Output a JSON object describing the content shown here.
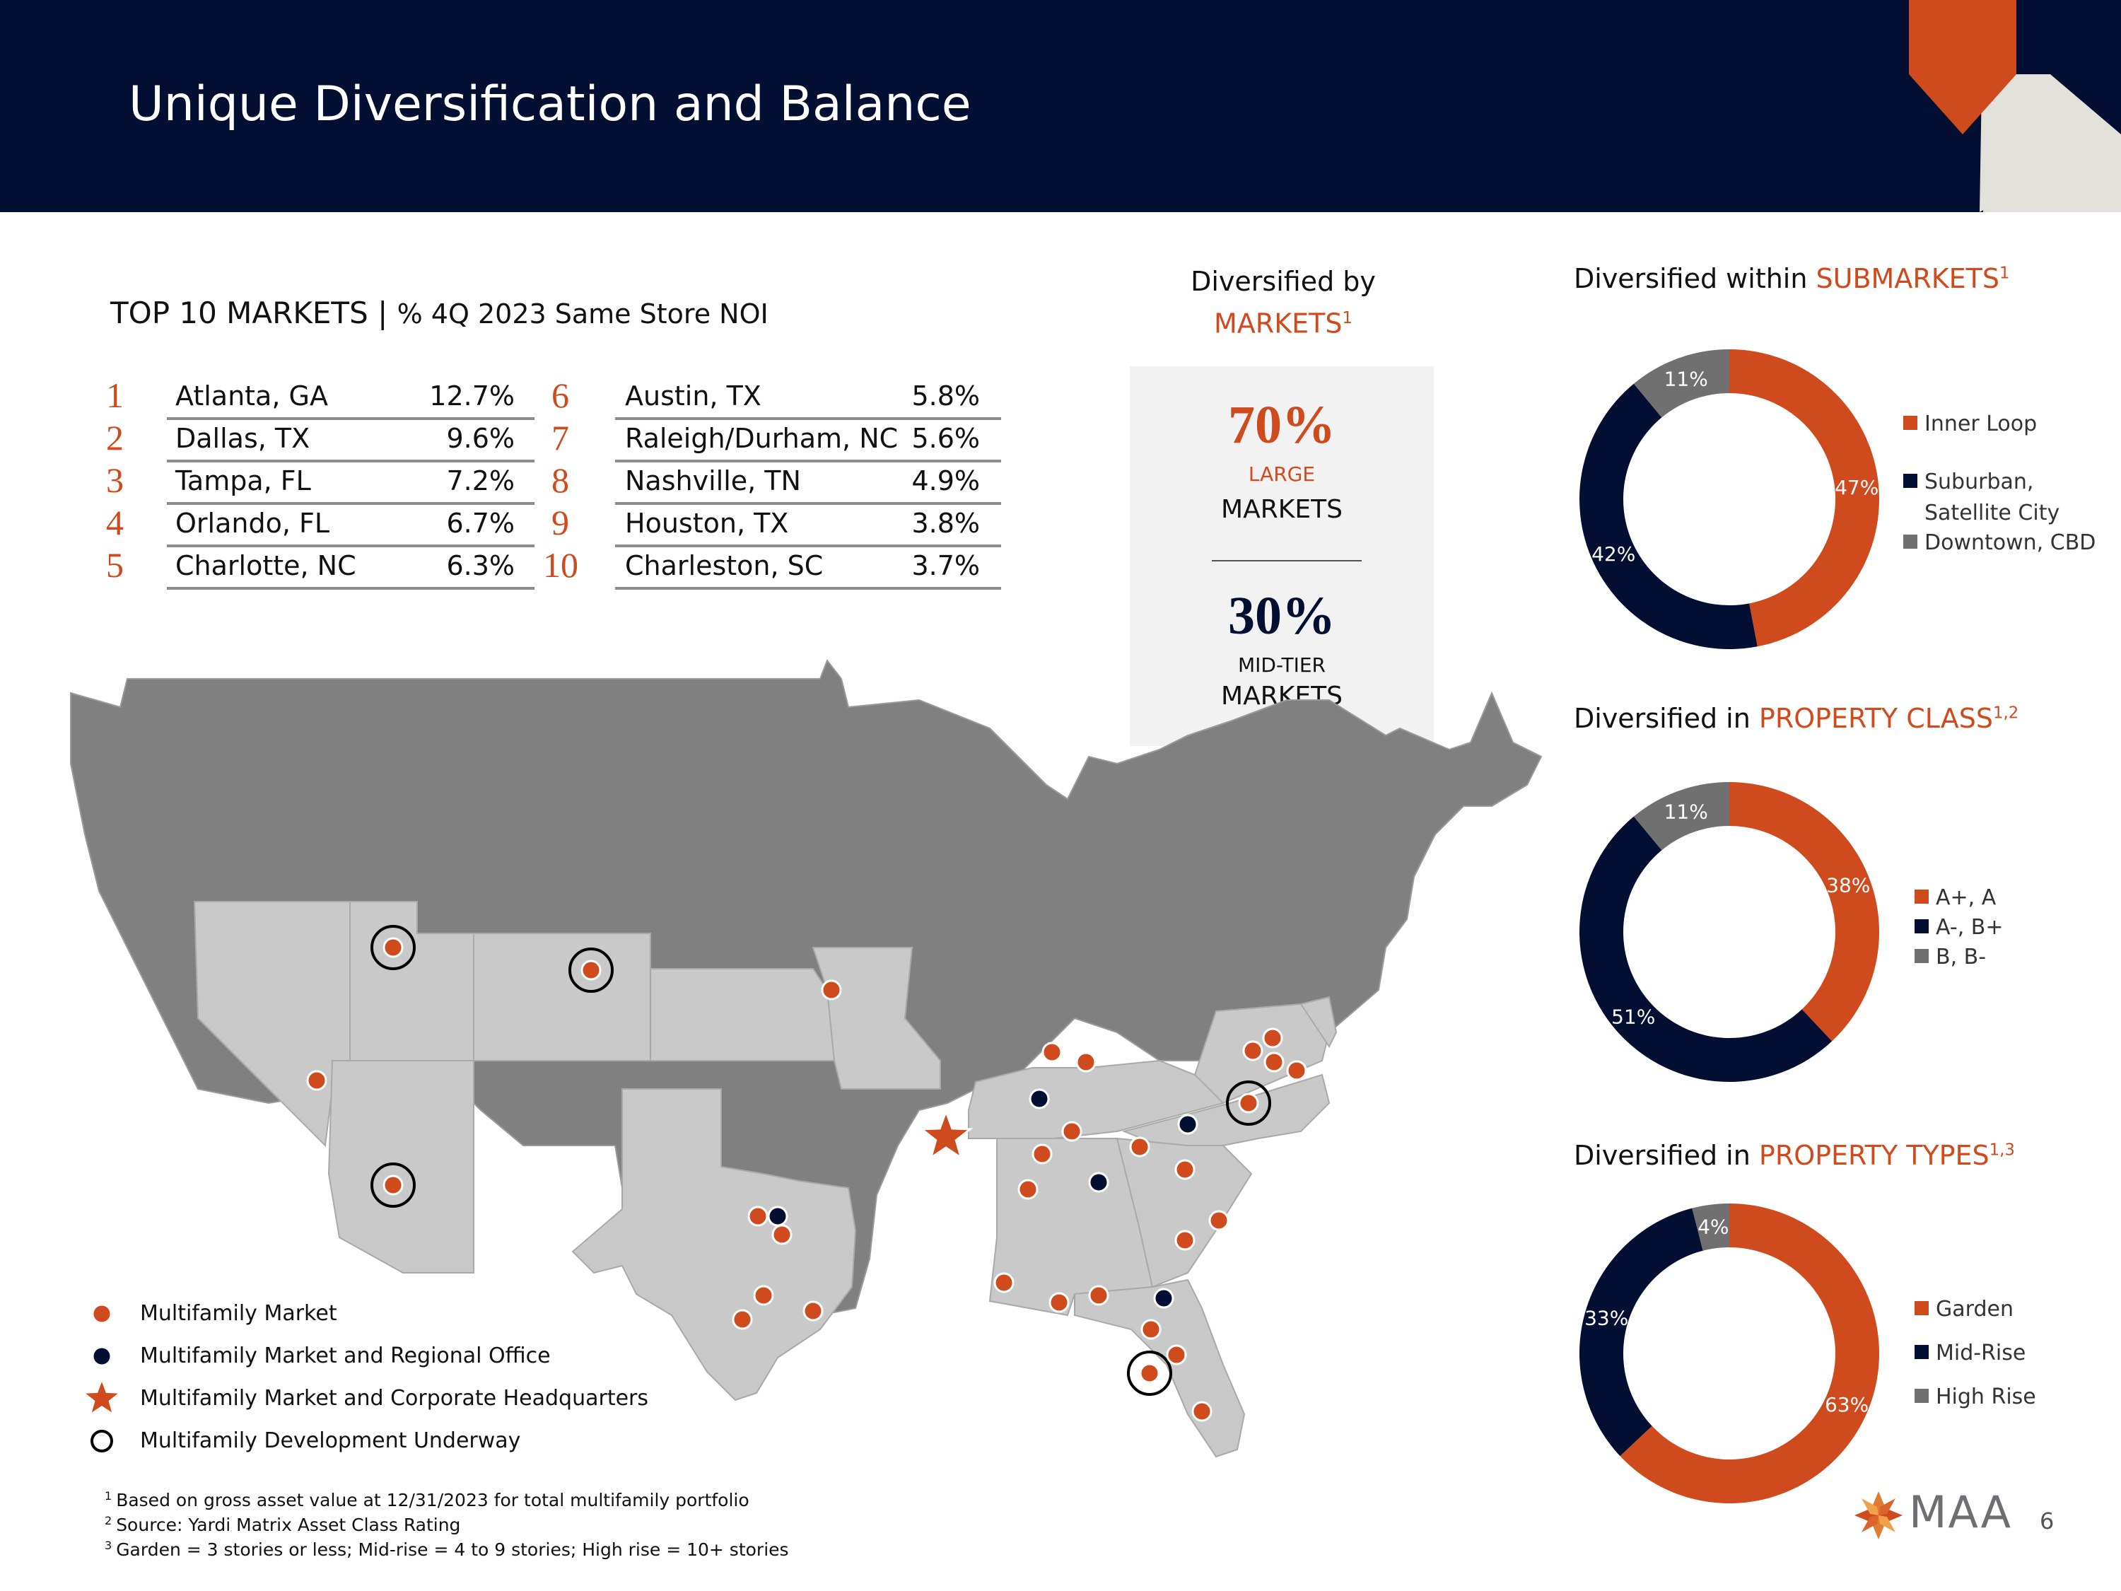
{
  "header": {
    "title": "Unique Diversification and Balance"
  },
  "top10": {
    "title": "TOP 10 MARKETS",
    "separator": "|",
    "subtitle": "% 4Q 2023 Same Store NOI",
    "markets": [
      {
        "rank": "1",
        "name": "Atlanta, GA",
        "value": "12.7%"
      },
      {
        "rank": "2",
        "name": "Dallas, TX",
        "value": "9.6%"
      },
      {
        "rank": "3",
        "name": "Tampa, FL",
        "value": "7.2%"
      },
      {
        "rank": "4",
        "name": "Orlando, FL",
        "value": "6.7%"
      },
      {
        "rank": "5",
        "name": "Charlotte, NC",
        "value": "6.3%"
      },
      {
        "rank": "6",
        "name": "Austin, TX",
        "value": "5.8%"
      },
      {
        "rank": "7",
        "name": "Raleigh/Durham, NC",
        "value": "5.6%"
      },
      {
        "rank": "8",
        "name": "Nashville, TN",
        "value": "4.9%"
      },
      {
        "rank": "9",
        "name": "Houston, TX",
        "value": "3.8%"
      },
      {
        "rank": "10",
        "name": "Charleston, SC",
        "value": "3.7%"
      }
    ]
  },
  "markets_box": {
    "title_line1": "Diversified by",
    "title_line2": "MARKETS",
    "title_sup": "1",
    "large_pct": "70%",
    "large_label": "LARGE",
    "large_word": "MARKETS",
    "mid_pct": "30%",
    "mid_label": "MID-TIER",
    "mid_word": "MARKETS"
  },
  "colors": {
    "navy": "#030f32",
    "orange": "#cf4a1c",
    "gray": "#707070",
    "state_dark": "#808080",
    "state_light": "#c9c9c9"
  },
  "map_legend": [
    {
      "label": "Multifamily Market",
      "icon": "orange-dot-icon"
    },
    {
      "label": "Multifamily Market and Regional Office",
      "icon": "navy-dot-icon"
    },
    {
      "label": "Multifamily Market and Corporate Headquarters",
      "icon": "star-icon"
    },
    {
      "label": "Multifamily Development Underway",
      "icon": "ring-icon"
    }
  ],
  "footnotes": [
    {
      "sup": "1",
      "text": "Based on gross asset value at 12/31/2023 for total multifamily portfolio"
    },
    {
      "sup": "2",
      "text": "Source: Yardi Matrix Asset Class Rating"
    },
    {
      "sup": "3",
      "text": "Garden = 3 stories or less; Mid-rise = 4 to 9 stories; High rise = 10+ stories"
    }
  ],
  "page_number": "6",
  "logo": {
    "text": "MAA"
  },
  "chart_data": [
    {
      "type": "pie",
      "title_prefix": "Diversified within ",
      "title_highlight": "SUBMARKETS",
      "title_sup": "1",
      "labels": [
        "Inner Loop",
        "Suburban, Satellite City",
        "Downtown, CBD"
      ],
      "label_lines": [
        [
          "Inner Loop"
        ],
        [
          "Suburban,",
          "Satellite City"
        ],
        [
          "Downtown, CBD"
        ]
      ],
      "values": [
        47,
        42,
        11
      ],
      "value_labels": [
        "47%",
        "42%",
        "11%"
      ],
      "colors": [
        "#cf4a1c",
        "#030f32",
        "#707070"
      ]
    },
    {
      "type": "pie",
      "title_prefix": "Diversified in ",
      "title_highlight": "PROPERTY CLASS",
      "title_sup": "1,2",
      "labels": [
        "A+, A",
        "A-, B+",
        "B, B-"
      ],
      "label_lines": [
        [
          "A+, A"
        ],
        [
          "A-, B+"
        ],
        [
          "B, B-"
        ]
      ],
      "values": [
        38,
        51,
        11
      ],
      "value_labels": [
        "38%",
        "51%",
        "11%"
      ],
      "colors": [
        "#cf4a1c",
        "#030f32",
        "#707070"
      ]
    },
    {
      "type": "pie",
      "title_prefix": "Diversified in ",
      "title_highlight": "PROPERTY TYPES",
      "title_sup": "1,3",
      "labels": [
        "Garden",
        "Mid-Rise",
        "High Rise"
      ],
      "label_lines": [
        [
          "Garden"
        ],
        [
          "Mid-Rise"
        ],
        [
          "High Rise"
        ]
      ],
      "values": [
        63,
        33,
        4
      ],
      "value_labels": [
        "63%",
        "33%",
        "4%"
      ],
      "colors": [
        "#cf4a1c",
        "#030f32",
        "#707070"
      ]
    }
  ]
}
